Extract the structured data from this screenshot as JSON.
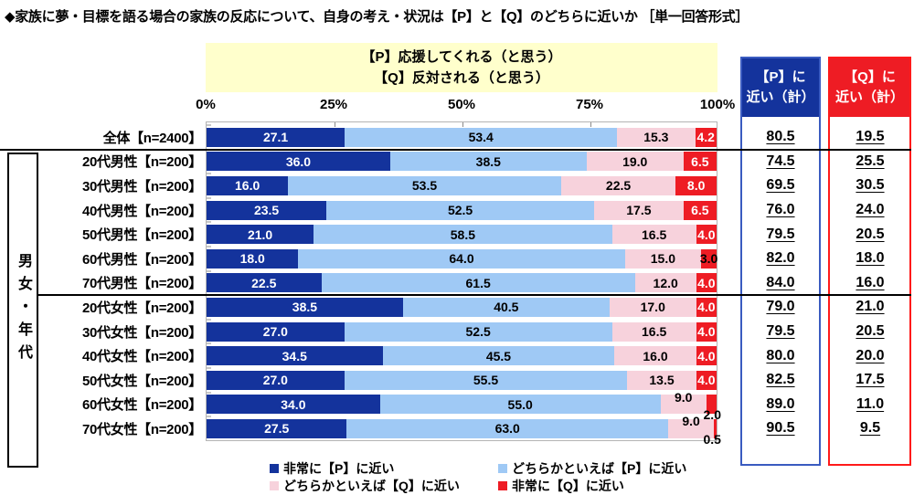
{
  "title": "◆家族に夢・目標を語る場合の家族の反応について、自身の考え・状況は【P】と【Q】のどちらに近いか ［単一回答形式］",
  "note": {
    "line1": "【P】応援してくれる（と思う）",
    "line2": "【Q】反対される（と思う）"
  },
  "summary": {
    "p_header_line1": "【P】に",
    "p_header_line2": "近い（計）",
    "q_header_line1": "【Q】に",
    "q_header_line2": "近い（計）"
  },
  "category_axis_label": "男女・年代",
  "colors": {
    "navy": "#14339C",
    "light_blue": "#9FC9F5",
    "pink": "#F7D2DC",
    "red": "#EE1C24",
    "note_bg": "#FFFFCC",
    "p_border": "#3A5BC0",
    "q_border": "#FF1A1A"
  },
  "legend": [
    {
      "label": "非常に【P】に近い",
      "color": "#14339C"
    },
    {
      "label": "どちらかといえば【P】に近い",
      "color": "#9FC9F5"
    },
    {
      "label": "どちらかといえば【Q】に近い",
      "color": "#F7D2DC"
    },
    {
      "label": "非常に【Q】に近い",
      "color": "#EE1C24"
    }
  ],
  "chart_data": {
    "type": "bar",
    "stacked": true,
    "orientation": "horizontal",
    "x_tick_labels": [
      "0%",
      "25%",
      "50%",
      "75%",
      "100%"
    ],
    "xlim": [
      0,
      100
    ],
    "categories": [
      "全体【n=2400】",
      "20代男性【n=200】",
      "30代男性【n=200】",
      "40代男性【n=200】",
      "50代男性【n=200】",
      "60代男性【n=200】",
      "70代男性【n=200】",
      "20代女性【n=200】",
      "30代女性【n=200】",
      "40代女性【n=200】",
      "50代女性【n=200】",
      "60代女性【n=200】",
      "70代女性【n=200】"
    ],
    "series": [
      {
        "name": "非常に【P】に近い",
        "values": [
          27.1,
          36.0,
          16.0,
          23.5,
          21.0,
          18.0,
          22.5,
          38.5,
          27.0,
          34.5,
          27.0,
          34.0,
          27.5
        ]
      },
      {
        "name": "どちらかといえば【P】に近い",
        "values": [
          53.4,
          38.5,
          53.5,
          52.5,
          58.5,
          64.0,
          61.5,
          40.5,
          52.5,
          45.5,
          55.5,
          55.0,
          63.0
        ]
      },
      {
        "name": "どちらかといえば【Q】に近い",
        "values": [
          15.3,
          19.0,
          22.5,
          17.5,
          16.5,
          15.0,
          12.0,
          17.0,
          16.5,
          16.0,
          13.5,
          9.0,
          9.0
        ]
      },
      {
        "name": "非常に【Q】に近い",
        "values": [
          4.2,
          6.5,
          8.0,
          6.5,
          4.0,
          3.0,
          4.0,
          4.0,
          4.0,
          4.0,
          4.0,
          2.0,
          0.5
        ]
      }
    ],
    "p_totals": [
      80.5,
      74.5,
      69.5,
      76.0,
      79.5,
      82.0,
      84.0,
      79.0,
      79.5,
      80.0,
      82.5,
      89.0,
      90.5
    ],
    "q_totals": [
      19.5,
      25.5,
      30.5,
      24.0,
      20.5,
      18.0,
      16.0,
      21.0,
      20.5,
      20.0,
      17.5,
      11.0,
      9.5
    ]
  }
}
